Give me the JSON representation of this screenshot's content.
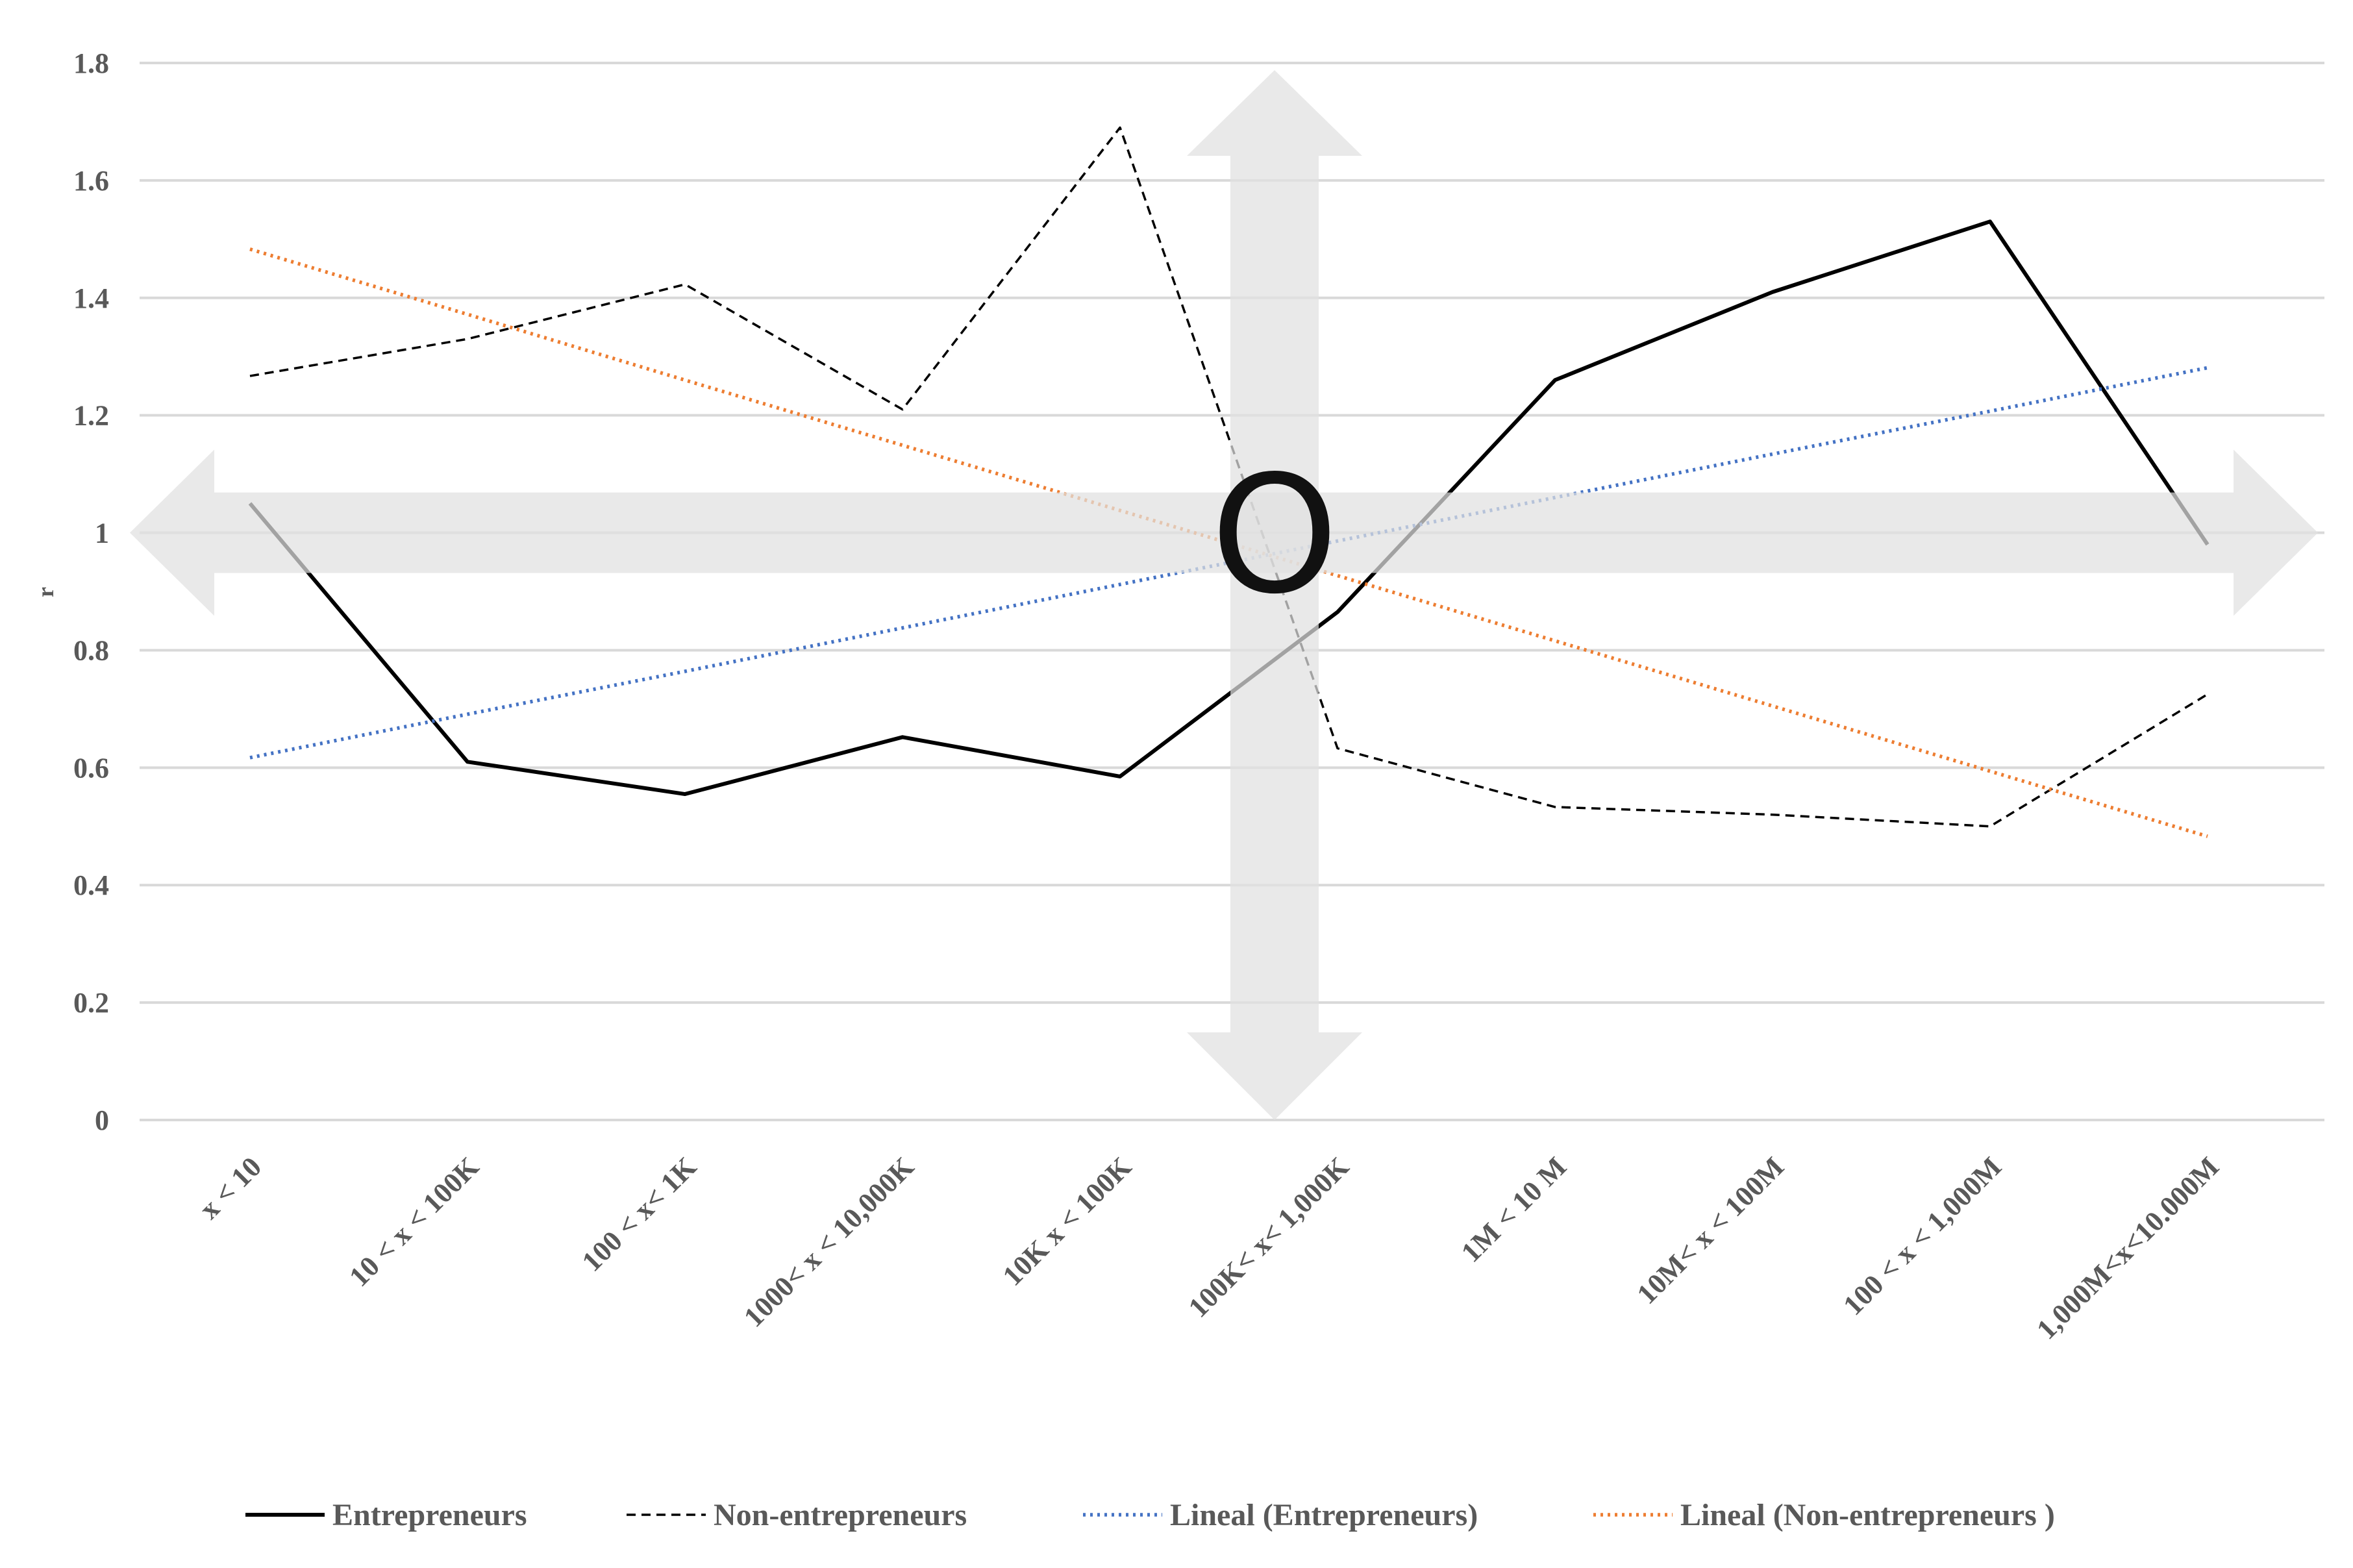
{
  "chart_data": {
    "type": "line",
    "title": "",
    "xlabel": "",
    "ylabel": "r",
    "ylim": [
      0,
      1.8
    ],
    "yticks": [
      "0",
      "0.2",
      "0.4",
      "0.6",
      "0.8",
      "1",
      "1.2",
      "1.4",
      "1.6",
      "1.8"
    ],
    "grid": true,
    "legend_position": "bottom",
    "categories": [
      "x < 10",
      "10 < x < 100K",
      "100 < x< 1K",
      "1000< x < 10,000K",
      "10K x < 100K",
      "100K< x< 1,000K",
      "1M < 10 M",
      "10M< x < 100M",
      "100 < x < 1,000M",
      "1,000M<x<10.000M"
    ],
    "series": [
      {
        "name": "Entrepreneurs",
        "style": "solid",
        "color": "#000000",
        "values": [
          1.05,
          0.61,
          0.555,
          0.652,
          0.585,
          0.865,
          1.26,
          1.41,
          1.53,
          0.98
        ]
      },
      {
        "name": "Non-entrepreneurs",
        "style": "dashed",
        "color": "#000000",
        "values": [
          1.267,
          1.33,
          1.423,
          1.21,
          1.69,
          0.633,
          0.533,
          0.52,
          0.5,
          0.725
        ]
      },
      {
        "name": "Lineal (Entrepreneurs)",
        "style": "dotted",
        "color": "#4472C4",
        "values": [
          0.617,
          0.691,
          0.764,
          0.838,
          0.912,
          0.986,
          1.06,
          1.134,
          1.207,
          1.281
        ]
      },
      {
        "name": "Lineal (Non-entrepreneurs )",
        "style": "dotted",
        "color": "#ED7D31",
        "values": [
          1.483,
          1.372,
          1.26,
          1.149,
          1.038,
          0.927,
          0.816,
          0.705,
          0.594,
          0.483
        ]
      }
    ],
    "annotations": [
      {
        "text": "O",
        "type": "center-marker"
      }
    ]
  },
  "colors": {
    "grid": "#d9d9d9",
    "arrow_fill": "#e0e0e0",
    "tick_text": "#595959"
  }
}
